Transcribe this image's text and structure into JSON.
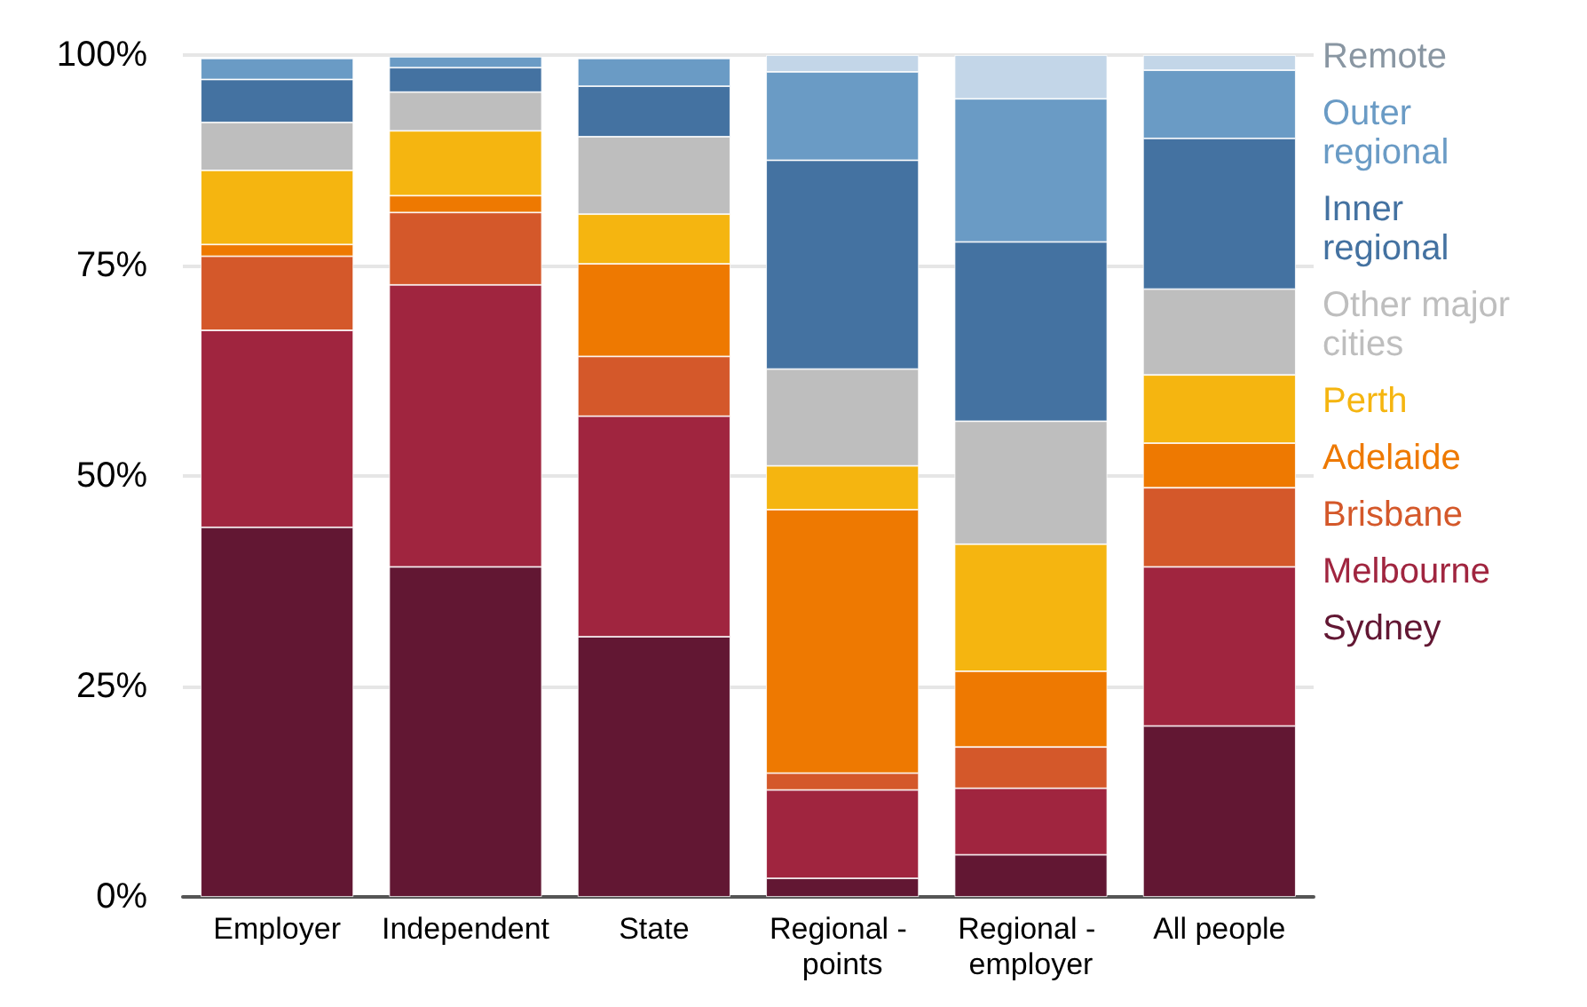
{
  "chart_data": {
    "type": "bar",
    "stacked": true,
    "categories": [
      "Employer",
      "Independent",
      "State",
      "Regional - points",
      "Regional - employer",
      "All people"
    ],
    "series": [
      {
        "name": "Sydney",
        "color": "#621733",
        "values": [
          43.9,
          39.2,
          30.9,
          2.2,
          5.0,
          20.3
        ]
      },
      {
        "name": "Melbourne",
        "color": "#a0253f",
        "values": [
          23.4,
          33.5,
          26.2,
          10.5,
          7.9,
          18.9
        ]
      },
      {
        "name": "Brisbane",
        "color": "#d4582a",
        "values": [
          8.8,
          8.6,
          7.1,
          2.0,
          4.9,
          9.4
        ]
      },
      {
        "name": "Adelaide",
        "color": "#ee7901",
        "values": [
          1.4,
          2.0,
          11.0,
          31.3,
          9.0,
          5.3
        ]
      },
      {
        "name": "Perth",
        "color": "#f5b510",
        "values": [
          8.8,
          7.7,
          5.9,
          5.2,
          15.1,
          8.1
        ]
      },
      {
        "name": "Other major cities",
        "color": "#bebebe",
        "values": [
          5.7,
          4.6,
          9.2,
          11.5,
          14.6,
          10.2
        ]
      },
      {
        "name": "Inner regional",
        "color": "#4472a1",
        "values": [
          5.1,
          2.9,
          6.0,
          24.8,
          21.3,
          17.9
        ]
      },
      {
        "name": "Outer regional",
        "color": "#6a9bc5",
        "values": [
          2.5,
          1.3,
          3.3,
          10.5,
          17.0,
          8.1
        ]
      },
      {
        "name": "Remote",
        "color": "#c3d6e8",
        "values": [
          null,
          null,
          null,
          2.0,
          5.2,
          1.8
        ]
      }
    ],
    "ylim": [
      0,
      100
    ],
    "yticks": [
      {
        "value": 0,
        "label": "0%"
      },
      {
        "value": 25,
        "label": "25%"
      },
      {
        "value": 50,
        "label": "50%"
      },
      {
        "value": 75,
        "label": "75%"
      },
      {
        "value": 100,
        "label": "100%"
      }
    ],
    "grid": "y",
    "legend": "right"
  }
}
